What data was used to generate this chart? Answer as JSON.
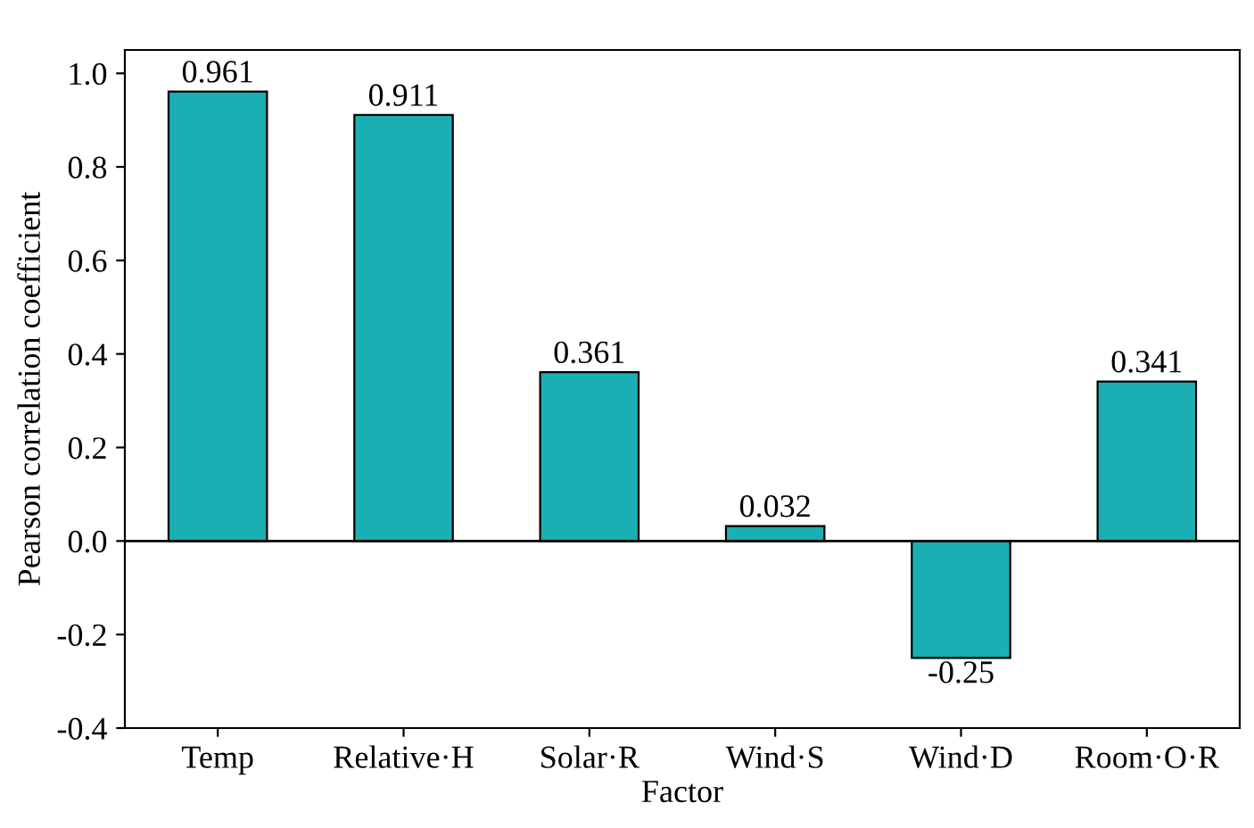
{
  "chart_data": {
    "type": "bar",
    "xlabel": "Factor",
    "ylabel": "Pearson correlation coefficient",
    "categories": [
      "Temp",
      "Relative·H",
      "Solar·R",
      "Wind·S",
      "Wind·D",
      "Room·O·R"
    ],
    "values": [
      0.961,
      0.911,
      0.361,
      0.032,
      -0.25,
      0.341
    ],
    "color": "#1aafb4",
    "data_labels": true,
    "ylim": [
      -0.4,
      1.05
    ],
    "yticks": [
      {
        "value": -0.4,
        "label": "-0.4"
      },
      {
        "value": -0.2,
        "label": "-0.2"
      },
      {
        "value": 0,
        "label": "0.0"
      },
      {
        "value": 0.2,
        "label": "0.2"
      },
      {
        "value": 0.4,
        "label": "0.4"
      },
      {
        "value": 0.6,
        "label": "0.6"
      },
      {
        "value": 0.8,
        "label": "0.8"
      },
      {
        "value": 1.0,
        "label": "1.0"
      }
    ],
    "ref_lines": [
      {
        "axis": "y",
        "value": 0,
        "color": "#000000"
      }
    ],
    "grid": false
  }
}
